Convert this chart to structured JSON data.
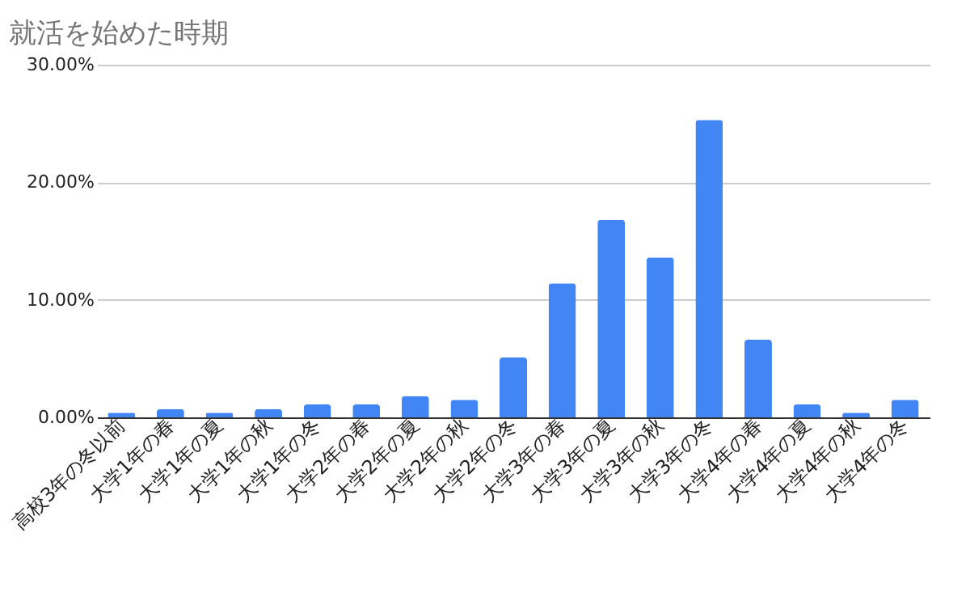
{
  "chart_data": {
    "type": "bar",
    "title": "就活を始めた時期",
    "categories": [
      "高校3年の冬以前",
      "大学1年の春",
      "大学1年の夏",
      "大学1年の秋",
      "大学1年の冬",
      "大学2年の春",
      "大学2年の夏",
      "大学2年の秋",
      "大学2年の冬",
      "大学3年の春",
      "大学3年の夏",
      "大学3年の秋",
      "大学3年の冬",
      "大学4年の春",
      "大学4年の夏",
      "大学4年の秋",
      "大学4年の冬"
    ],
    "values": [
      0.4,
      0.7,
      0.4,
      0.7,
      1.1,
      1.1,
      1.8,
      1.5,
      5.1,
      11.4,
      16.8,
      13.6,
      25.3,
      6.6,
      1.1,
      0.4,
      1.5
    ],
    "color": "#4285f4",
    "ylim": [
      0,
      30
    ],
    "yticks": [
      {
        "value": 0,
        "label": "0.00%"
      },
      {
        "value": 10,
        "label": "10.00%"
      },
      {
        "value": 20,
        "label": "20.00%"
      },
      {
        "value": 30,
        "label": "30.00%"
      }
    ],
    "grid": "y"
  }
}
